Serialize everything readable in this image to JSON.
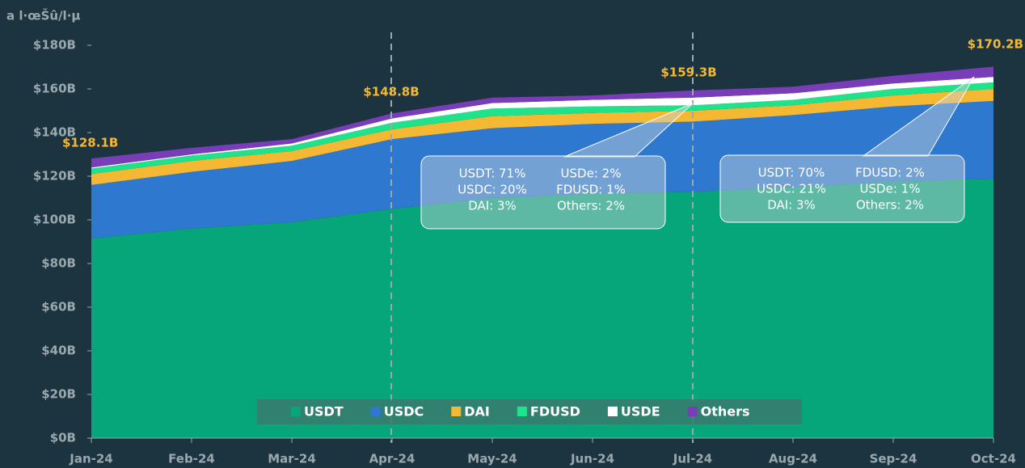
{
  "chart_data": {
    "type": "stacked_area",
    "y_label": "a l·œŠû/l·µ",
    "categories": [
      "Jan-24",
      "Feb-24",
      "Mar-24",
      "Apr-24",
      "May-24",
      "Jun-24",
      "Jul-24",
      "Aug-24",
      "Sep-24",
      "Oct-24"
    ],
    "series": [
      {
        "name": "USDT",
        "color": "#06a57a",
        "values": [
          91.5,
          96,
          99,
          105,
          110,
          112,
          112.8,
          115,
          117.5,
          119
        ]
      },
      {
        "name": "USDC",
        "color": "#2f78cf",
        "values": [
          24.5,
          26,
          28,
          32,
          32,
          32,
          32.2,
          33,
          34.5,
          35.5
        ]
      },
      {
        "name": "DAI",
        "color": "#f5b833",
        "values": [
          5,
          5,
          4.5,
          4.5,
          5.5,
          5,
          5,
          4.5,
          5,
          5.5
        ]
      },
      {
        "name": "FDUSD",
        "color": "#1ee38a",
        "values": [
          2.5,
          2.5,
          2.5,
          3,
          3.5,
          3,
          2.5,
          2.5,
          3,
          3
        ]
      },
      {
        "name": "USDE",
        "color": "#ffffff",
        "values": [
          0.5,
          0.5,
          1,
          2,
          2.5,
          3,
          3.5,
          3,
          2.5,
          2.5
        ]
      },
      {
        "name": "Others",
        "color": "#7a3db8",
        "values": [
          4.1,
          3,
          2,
          2.3,
          2.5,
          2,
          3.3,
          3,
          3.5,
          4.7
        ]
      }
    ],
    "ylim": [
      0,
      180
    ],
    "yticks": [
      {
        "value": 0,
        "label": "$0B"
      },
      {
        "value": 20,
        "label": "$20B"
      },
      {
        "value": 40,
        "label": "$40B"
      },
      {
        "value": 60,
        "label": "$60B"
      },
      {
        "value": 80,
        "label": "$80B"
      },
      {
        "value": 100,
        "label": "$100B"
      },
      {
        "value": 120,
        "label": "$120B"
      },
      {
        "value": 140,
        "label": "$140B"
      },
      {
        "value": 160,
        "label": "$160B"
      },
      {
        "value": 180,
        "label": "$180B"
      }
    ],
    "total_labels": [
      "$128.1B",
      "$148.8B",
      "$159.3B",
      "$170.2B"
    ],
    "callouts": [
      {
        "rows": [
          [
            "USDT: 71%",
            "USDe: 2%"
          ],
          [
            "USDC: 20%",
            "FDUSD: 1%"
          ],
          [
            "DAI: 3%",
            "Others: 2%"
          ]
        ]
      },
      {
        "rows": [
          [
            "USDT: 70%",
            "FDUSD: 2%"
          ],
          [
            "USDC: 21%",
            "USDe: 1%"
          ],
          [
            "DAI: 3%",
            "Others: 2%"
          ]
        ]
      }
    ],
    "legend": "bottom"
  }
}
